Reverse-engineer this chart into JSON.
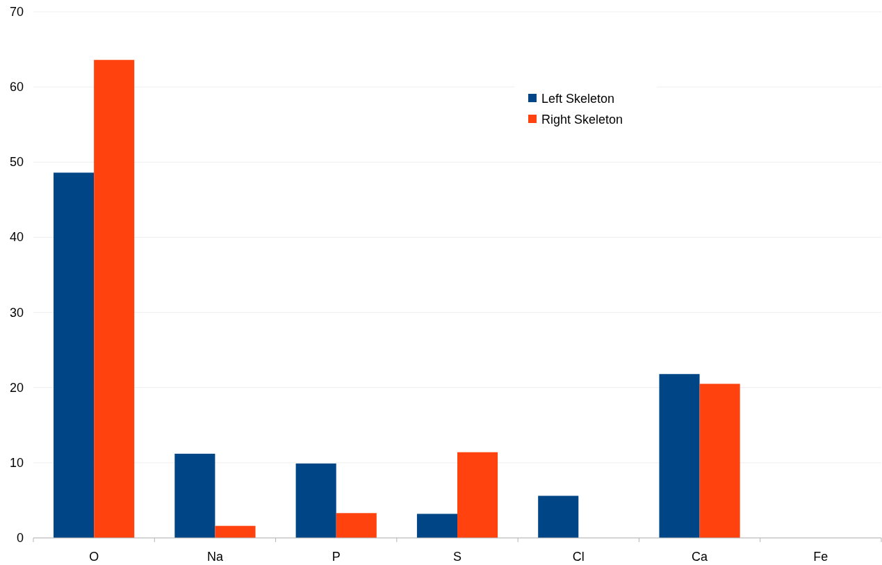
{
  "chart_data": {
    "type": "bar",
    "categories": [
      "O",
      "Na",
      "P",
      "S",
      "Cl",
      "Ca",
      "Fe"
    ],
    "series": [
      {
        "name": "Left Skeleton",
        "color": "#004586",
        "values": [
          48.6,
          11.2,
          9.9,
          3.2,
          5.6,
          21.8,
          0
        ]
      },
      {
        "name": "Right Skeleton",
        "color": "#ff420e",
        "values": [
          63.6,
          1.6,
          3.3,
          11.4,
          0,
          20.5,
          0
        ]
      }
    ],
    "ylim": [
      0,
      70
    ],
    "yticks": [
      0,
      10,
      20,
      30,
      40,
      50,
      60,
      70
    ],
    "grid": "y",
    "legend": "top right"
  }
}
